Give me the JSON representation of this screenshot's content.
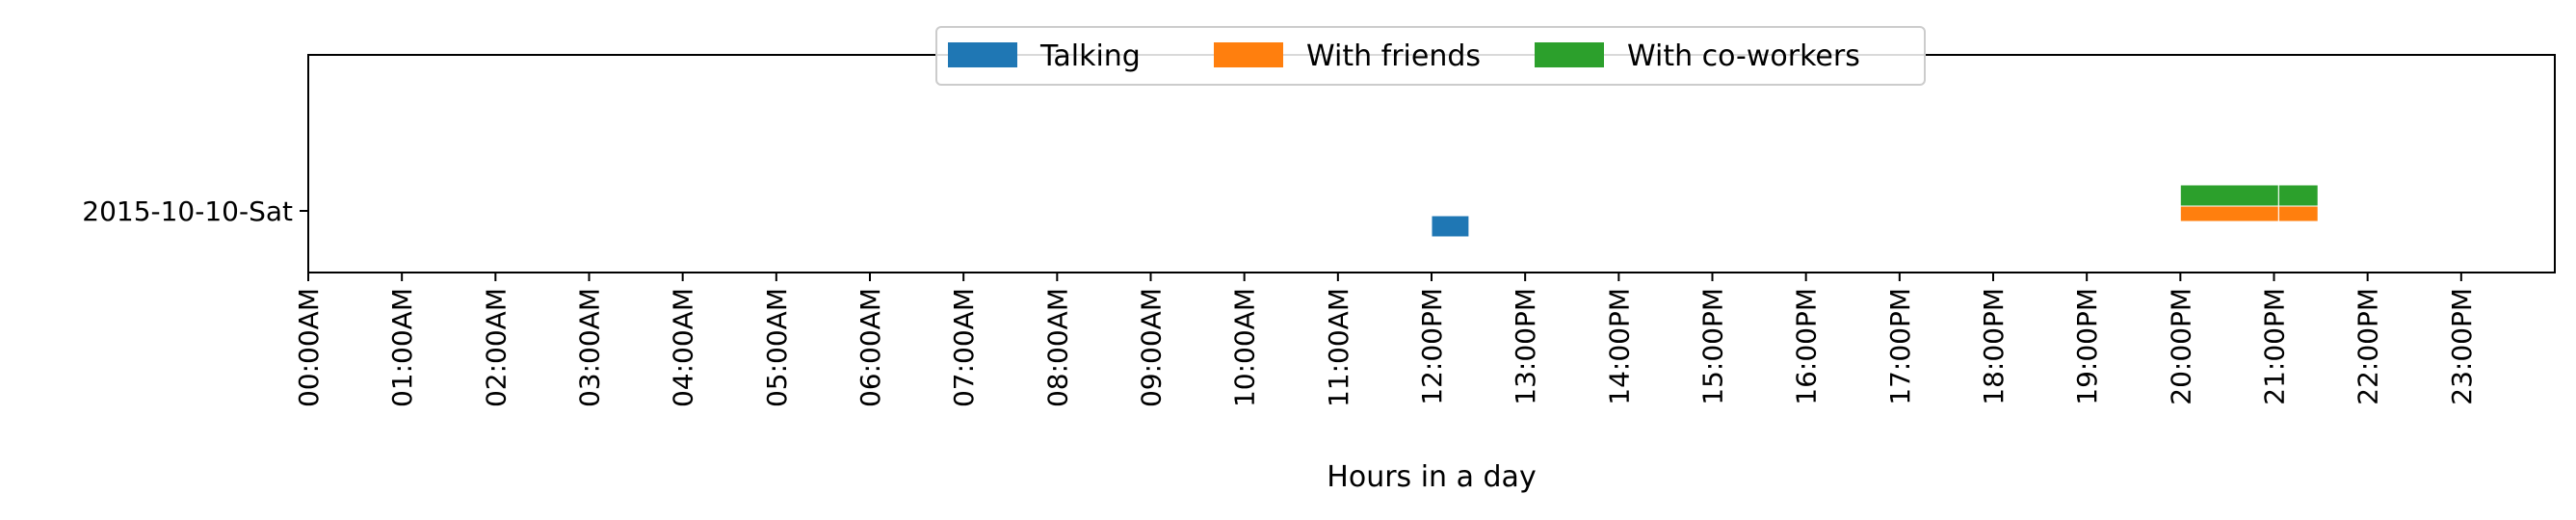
{
  "chart_data": {
    "type": "bar",
    "orientation": "horizontal-timeline",
    "title": "",
    "xlabel": "Hours in a day",
    "ylabel": "",
    "xlim": [
      0,
      24
    ],
    "x_tick_labels": [
      "00:00AM",
      "01:00AM",
      "02:00AM",
      "03:00AM",
      "04:00AM",
      "05:00AM",
      "06:00AM",
      "07:00AM",
      "08:00AM",
      "09:00AM",
      "10:00AM",
      "11:00AM",
      "12:00PM",
      "13:00PM",
      "14:00PM",
      "15:00PM",
      "16:00PM",
      "17:00PM",
      "18:00PM",
      "19:00PM",
      "20:00PM",
      "21:00PM",
      "22:00PM",
      "23:00PM"
    ],
    "categories": [
      "2015-10-10-Sat"
    ],
    "legend_position": "top-center",
    "grid": false,
    "series": [
      {
        "name": "Talking",
        "color": "#1f77b4",
        "level": "low",
        "intervals": [
          {
            "category": "2015-10-10-Sat",
            "start": 12.0,
            "end": 12.4
          }
        ]
      },
      {
        "name": "With friends",
        "color": "#ff7f0e",
        "level": "mid",
        "intervals": [
          {
            "category": "2015-10-10-Sat",
            "start": 20.0,
            "end": 21.05
          },
          {
            "category": "2015-10-10-Sat",
            "start": 21.05,
            "end": 21.47
          }
        ]
      },
      {
        "name": "With co-workers",
        "color": "#2ca02c",
        "level": "high",
        "intervals": [
          {
            "category": "2015-10-10-Sat",
            "start": 20.0,
            "end": 21.05
          },
          {
            "category": "2015-10-10-Sat",
            "start": 21.05,
            "end": 21.47
          }
        ]
      }
    ]
  }
}
